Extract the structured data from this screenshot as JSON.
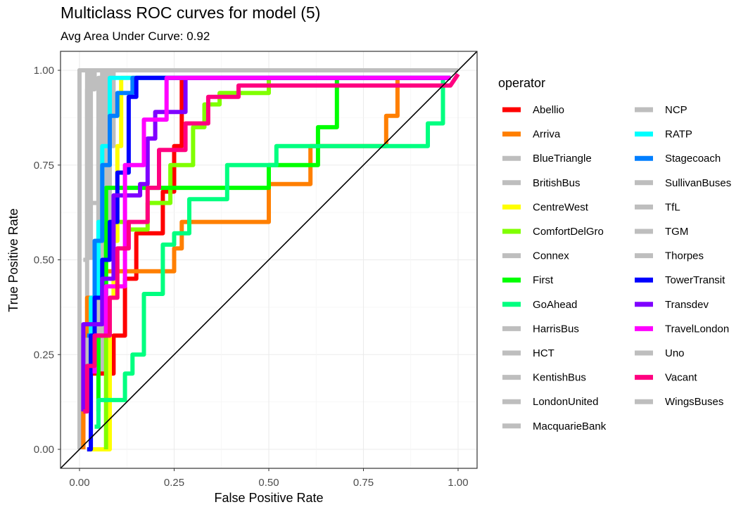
{
  "chart_data": {
    "type": "line",
    "title": "Multiclass ROC curves for model (5)",
    "subtitle": "Avg Area Under Curve: 0.92",
    "xlabel": "False Positive Rate",
    "ylabel": "True Positive Rate",
    "xlim": [
      0,
      1
    ],
    "ylim": [
      0,
      1
    ],
    "x_ticks": [
      "0.00",
      "0.25",
      "0.50",
      "0.75",
      "1.00"
    ],
    "y_ticks": [
      "0.00",
      "0.25",
      "0.50",
      "0.75",
      "1.00"
    ],
    "grid": true,
    "legend_title": "operator",
    "legend_position": "right",
    "diagonal_reference": true,
    "series": [
      {
        "name": "Abellio",
        "color": "#ff0000",
        "points": [
          [
            0.01,
            0
          ],
          [
            0.01,
            0.1
          ],
          [
            0.03,
            0.2
          ],
          [
            0.09,
            0.2
          ],
          [
            0.09,
            0.3
          ],
          [
            0.12,
            0.3
          ],
          [
            0.12,
            0.45
          ],
          [
            0.15,
            0.45
          ],
          [
            0.15,
            0.57
          ],
          [
            0.22,
            0.57
          ],
          [
            0.22,
            0.68
          ],
          [
            0.25,
            0.68
          ],
          [
            0.25,
            0.8
          ],
          [
            0.27,
            0.8
          ],
          [
            0.27,
            0.98
          ],
          [
            0.98,
            0.98
          ]
        ]
      },
      {
        "name": "Arriva",
        "color": "#ff7f00",
        "points": [
          [
            0.01,
            0
          ],
          [
            0.01,
            0.3
          ],
          [
            0.02,
            0.3
          ],
          [
            0.02,
            0.4
          ],
          [
            0.05,
            0.4
          ],
          [
            0.05,
            0.47
          ],
          [
            0.25,
            0.47
          ],
          [
            0.25,
            0.53
          ],
          [
            0.27,
            0.53
          ],
          [
            0.27,
            0.6
          ],
          [
            0.5,
            0.6
          ],
          [
            0.5,
            0.7
          ],
          [
            0.61,
            0.7
          ],
          [
            0.61,
            0.8
          ],
          [
            0.81,
            0.8
          ],
          [
            0.81,
            0.88
          ],
          [
            0.84,
            0.88
          ],
          [
            0.84,
            0.98
          ],
          [
            0.98,
            0.98
          ]
        ]
      },
      {
        "name": "BlueTriangle",
        "color": "#bebebe",
        "points": [
          [
            0,
            0
          ],
          [
            0,
            1
          ],
          [
            1,
            1
          ]
        ]
      },
      {
        "name": "BritishBus",
        "color": "#bebebe",
        "points": [
          [
            0,
            0
          ],
          [
            0,
            1
          ],
          [
            1,
            1
          ]
        ]
      },
      {
        "name": "CentreWest",
        "color": "#ffff00",
        "points": [
          [
            0.02,
            0
          ],
          [
            0.08,
            0
          ],
          [
            0.08,
            0.4
          ],
          [
            0.09,
            0.4
          ],
          [
            0.09,
            0.55
          ],
          [
            0.1,
            0.55
          ],
          [
            0.1,
            0.8
          ],
          [
            0.11,
            0.8
          ],
          [
            0.11,
            0.98
          ],
          [
            0.98,
            0.98
          ]
        ]
      },
      {
        "name": "ComfortDelGro",
        "color": "#80ff00",
        "points": [
          [
            0.07,
            0
          ],
          [
            0.07,
            0.6
          ],
          [
            0.13,
            0.6
          ],
          [
            0.13,
            0.58
          ],
          [
            0.18,
            0.58
          ],
          [
            0.18,
            0.65
          ],
          [
            0.24,
            0.65
          ],
          [
            0.24,
            0.75
          ],
          [
            0.3,
            0.75
          ],
          [
            0.3,
            0.85
          ],
          [
            0.33,
            0.85
          ],
          [
            0.33,
            0.91
          ],
          [
            0.37,
            0.91
          ],
          [
            0.37,
            0.94
          ],
          [
            0.5,
            0.94
          ],
          [
            0.5,
            0.98
          ],
          [
            0.98,
            0.98
          ]
        ]
      },
      {
        "name": "Connex",
        "color": "#bebebe",
        "points": [
          [
            0,
            0
          ],
          [
            0,
            1
          ],
          [
            1,
            1
          ]
        ]
      },
      {
        "name": "First",
        "color": "#00ff00",
        "points": [
          [
            0.05,
            0.1
          ],
          [
            0.05,
            0.3
          ],
          [
            0.07,
            0.3
          ],
          [
            0.07,
            0.69
          ],
          [
            0.11,
            0.69
          ],
          [
            0.11,
            0.69
          ],
          [
            0.5,
            0.69
          ],
          [
            0.5,
            0.75
          ],
          [
            0.63,
            0.75
          ],
          [
            0.63,
            0.85
          ],
          [
            0.68,
            0.85
          ],
          [
            0.68,
            0.98
          ],
          [
            0.98,
            0.98
          ]
        ]
      },
      {
        "name": "GoAhead",
        "color": "#00ff80",
        "points": [
          [
            0.04,
            0.06
          ],
          [
            0.05,
            0.06
          ],
          [
            0.05,
            0.13
          ],
          [
            0.12,
            0.13
          ],
          [
            0.12,
            0.2
          ],
          [
            0.14,
            0.2
          ],
          [
            0.14,
            0.25
          ],
          [
            0.17,
            0.25
          ],
          [
            0.17,
            0.41
          ],
          [
            0.22,
            0.41
          ],
          [
            0.22,
            0.54
          ],
          [
            0.25,
            0.54
          ],
          [
            0.25,
            0.57
          ],
          [
            0.29,
            0.57
          ],
          [
            0.29,
            0.66
          ],
          [
            0.39,
            0.66
          ],
          [
            0.39,
            0.75
          ],
          [
            0.52,
            0.75
          ],
          [
            0.52,
            0.8
          ],
          [
            0.92,
            0.8
          ],
          [
            0.92,
            0.86
          ],
          [
            0.96,
            0.86
          ],
          [
            0.96,
            0.98
          ],
          [
            0.98,
            0.98
          ]
        ]
      },
      {
        "name": "HarrisBus",
        "color": "#bebebe",
        "points": [
          [
            0,
            0
          ],
          [
            0,
            1
          ],
          [
            1,
            1
          ]
        ]
      },
      {
        "name": "HCT",
        "color": "#bebebe",
        "points": [
          [
            0,
            0
          ],
          [
            0,
            1
          ],
          [
            1,
            1
          ]
        ]
      },
      {
        "name": "KentishBus",
        "color": "#bebebe",
        "points": [
          [
            0,
            0
          ],
          [
            0,
            1
          ],
          [
            1,
            1
          ]
        ]
      },
      {
        "name": "LondonUnited",
        "color": "#bebebe",
        "points": [
          [
            0,
            0
          ],
          [
            0,
            1
          ],
          [
            1,
            1
          ]
        ]
      },
      {
        "name": "MacquarieBank",
        "color": "#bebebe",
        "points": [
          [
            0,
            0
          ],
          [
            0,
            1
          ],
          [
            1,
            1
          ]
        ]
      },
      {
        "name": "NCP",
        "color": "#bebebe",
        "points": [
          [
            0,
            0
          ],
          [
            0,
            1
          ],
          [
            1,
            1
          ]
        ]
      },
      {
        "name": "RATP",
        "color": "#00ffff",
        "points": [
          [
            0.02,
            0.2
          ],
          [
            0.03,
            0.2
          ],
          [
            0.03,
            0.4
          ],
          [
            0.05,
            0.4
          ],
          [
            0.05,
            0.6
          ],
          [
            0.06,
            0.6
          ],
          [
            0.06,
            0.8
          ],
          [
            0.08,
            0.8
          ],
          [
            0.08,
            0.98
          ],
          [
            0.98,
            0.98
          ]
        ]
      },
      {
        "name": "Stagecoach",
        "color": "#007fff",
        "points": [
          [
            0.02,
            0.3
          ],
          [
            0.04,
            0.3
          ],
          [
            0.04,
            0.55
          ],
          [
            0.06,
            0.55
          ],
          [
            0.06,
            0.75
          ],
          [
            0.08,
            0.75
          ],
          [
            0.08,
            0.88
          ],
          [
            0.1,
            0.88
          ],
          [
            0.1,
            0.94
          ],
          [
            0.14,
            0.94
          ],
          [
            0.14,
            0.98
          ],
          [
            0.98,
            0.98
          ]
        ]
      },
      {
        "name": "SullivanBuses",
        "color": "#bebebe",
        "points": [
          [
            0,
            0
          ],
          [
            0,
            1
          ],
          [
            1,
            1
          ]
        ]
      },
      {
        "name": "TfL",
        "color": "#bebebe",
        "points": [
          [
            0,
            0
          ],
          [
            0,
            1
          ],
          [
            1,
            1
          ]
        ]
      },
      {
        "name": "TGM",
        "color": "#bebebe",
        "points": [
          [
            0,
            0
          ],
          [
            0,
            1
          ],
          [
            1,
            1
          ]
        ]
      },
      {
        "name": "Thorpes",
        "color": "#bebebe",
        "points": [
          [
            0,
            0
          ],
          [
            0,
            1
          ],
          [
            1,
            1
          ]
        ]
      },
      {
        "name": "TowerTransit",
        "color": "#0000ff",
        "points": [
          [
            0.02,
            0
          ],
          [
            0.03,
            0
          ],
          [
            0.03,
            0.3
          ],
          [
            0.04,
            0.3
          ],
          [
            0.04,
            0.4
          ],
          [
            0.06,
            0.4
          ],
          [
            0.06,
            0.5
          ],
          [
            0.08,
            0.5
          ],
          [
            0.08,
            0.6
          ],
          [
            0.1,
            0.6
          ],
          [
            0.1,
            0.73
          ],
          [
            0.13,
            0.73
          ],
          [
            0.13,
            0.93
          ],
          [
            0.15,
            0.93
          ],
          [
            0.15,
            0.98
          ],
          [
            0.98,
            0.98
          ]
        ]
      },
      {
        "name": "Transdev",
        "color": "#7f00ff",
        "points": [
          [
            0.01,
            0.1
          ],
          [
            0.01,
            0.33
          ],
          [
            0.06,
            0.33
          ],
          [
            0.06,
            0.45
          ],
          [
            0.09,
            0.45
          ],
          [
            0.09,
            0.67
          ],
          [
            0.16,
            0.67
          ],
          [
            0.16,
            0.7
          ],
          [
            0.18,
            0.7
          ],
          [
            0.18,
            0.82
          ],
          [
            0.2,
            0.82
          ],
          [
            0.2,
            0.89
          ],
          [
            0.28,
            0.89
          ],
          [
            0.28,
            0.98
          ],
          [
            0.98,
            0.98
          ]
        ]
      },
      {
        "name": "TravelLondon",
        "color": "#ff00ff",
        "points": [
          [
            0.04,
            0.2
          ],
          [
            0.04,
            0.3
          ],
          [
            0.07,
            0.3
          ],
          [
            0.07,
            0.43
          ],
          [
            0.12,
            0.43
          ],
          [
            0.12,
            0.75
          ],
          [
            0.17,
            0.75
          ],
          [
            0.17,
            0.87
          ],
          [
            0.23,
            0.87
          ],
          [
            0.23,
            0.98
          ],
          [
            0.98,
            0.98
          ]
        ]
      },
      {
        "name": "Uno",
        "color": "#bebebe",
        "points": [
          [
            0,
            0
          ],
          [
            0,
            1
          ],
          [
            1,
            1
          ]
        ]
      },
      {
        "name": "Vacant",
        "color": "#ff0080",
        "points": [
          [
            0.01,
            0.1
          ],
          [
            0.02,
            0.1
          ],
          [
            0.02,
            0.22
          ],
          [
            0.04,
            0.22
          ],
          [
            0.04,
            0.3
          ],
          [
            0.08,
            0.3
          ],
          [
            0.08,
            0.4
          ],
          [
            0.1,
            0.4
          ],
          [
            0.1,
            0.53
          ],
          [
            0.13,
            0.53
          ],
          [
            0.13,
            0.6
          ],
          [
            0.18,
            0.6
          ],
          [
            0.18,
            0.69
          ],
          [
            0.21,
            0.69
          ],
          [
            0.21,
            0.79
          ],
          [
            0.28,
            0.79
          ],
          [
            0.28,
            0.86
          ],
          [
            0.34,
            0.86
          ],
          [
            0.34,
            0.93
          ],
          [
            0.42,
            0.93
          ],
          [
            0.42,
            0.96
          ],
          [
            0.98,
            0.96
          ],
          [
            1,
            0.99
          ]
        ]
      },
      {
        "name": "WingsBuses",
        "color": "#bebebe",
        "points": [
          [
            0,
            0
          ],
          [
            0,
            1
          ],
          [
            1,
            1
          ]
        ]
      }
    ],
    "grey_overlay": [
      [
        [
          0.01,
          0.5
        ],
        [
          0.02,
          0.5
        ],
        [
          0.02,
          1
        ]
      ],
      [
        [
          0.03,
          0.5
        ],
        [
          0.03,
          0.95
        ],
        [
          0.04,
          0.95
        ],
        [
          0.04,
          1
        ]
      ],
      [
        [
          0.04,
          0.2
        ],
        [
          0.04,
          0.4
        ],
        [
          0.05,
          0.4
        ],
        [
          0.05,
          0.65
        ],
        [
          0.06,
          0.65
        ],
        [
          0.06,
          0.9
        ],
        [
          0.07,
          0.9
        ],
        [
          0.07,
          1
        ]
      ],
      [
        [
          0.03,
          0.65
        ],
        [
          0.05,
          0.65
        ],
        [
          0.05,
          0.85
        ],
        [
          0.06,
          0.85
        ],
        [
          0.06,
          1
        ]
      ],
      [
        [
          0.06,
          0.2
        ],
        [
          0.06,
          0.6
        ],
        [
          0.07,
          0.6
        ],
        [
          0.07,
          0.9
        ],
        [
          0.08,
          0.9
        ],
        [
          0.08,
          1
        ]
      ],
      [
        [
          0.08,
          0.55
        ],
        [
          0.08,
          0.8
        ],
        [
          0.09,
          0.8
        ],
        [
          0.09,
          1
        ]
      ],
      [
        [
          0.02,
          0.2
        ],
        [
          0.02,
          0.95
        ],
        [
          0.03,
          0.95
        ],
        [
          0.03,
          1
        ]
      ],
      [
        [
          0.05,
          0.3
        ],
        [
          0.05,
          0.98
        ],
        [
          0.06,
          0.98
        ],
        [
          0.06,
          1
        ]
      ]
    ]
  }
}
